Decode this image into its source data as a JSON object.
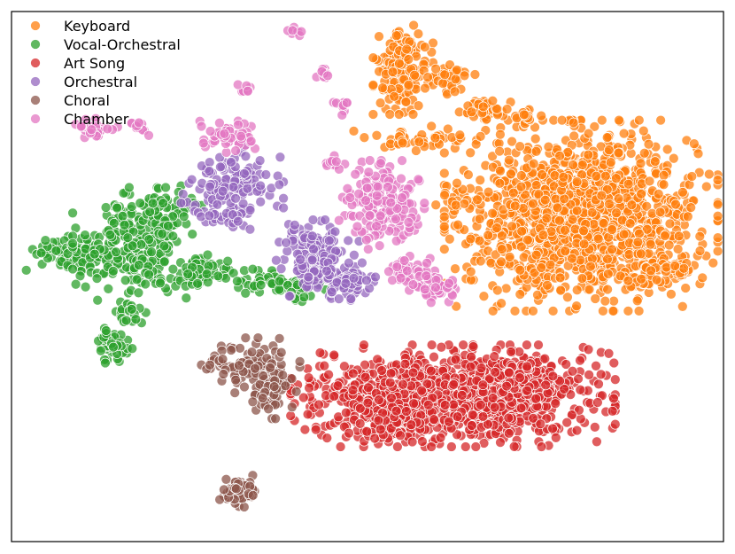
{
  "chart_data": {
    "type": "scatter",
    "title": "",
    "xlabel": "",
    "ylabel": "",
    "xlim": [
      -100,
      100
    ],
    "ylim": [
      -100,
      100
    ],
    "grid": false,
    "ticks": false,
    "legend": "top-left",
    "point_alpha": 0.75,
    "series": [
      {
        "name": "Keyboard",
        "color": "#ff7f0e",
        "clusters": [
          {
            "center": [
              60,
              23
            ],
            "spread": [
              16,
              15
            ],
            "count": 1400
          },
          {
            "center": [
              10,
              78
            ],
            "spread": [
              3.5,
              7
            ],
            "count": 170
          },
          {
            "center": [
              23,
              75
            ],
            "spread": [
              3,
              3
            ],
            "count": 35
          },
          {
            "center": [
              33,
              63
            ],
            "spread": [
              3,
              2
            ],
            "count": 40
          },
          {
            "center": [
              44,
              60
            ],
            "spread": [
              2,
              2
            ],
            "count": 20
          },
          {
            "center": [
              13,
              52
            ],
            "spread": [
              8,
              2
            ],
            "count": 45
          },
          {
            "center": [
              85,
              3
            ],
            "spread": [
              4,
              2
            ],
            "count": 40
          },
          {
            "center": [
              76,
              -2
            ],
            "spread": [
              3,
              2
            ],
            "count": 20
          },
          {
            "center": [
              24,
              30
            ],
            "spread": [
              2,
              3
            ],
            "count": 12
          }
        ]
      },
      {
        "name": "Vocal-Orchestral",
        "color": "#2ca02c",
        "clusters": [
          {
            "center": [
              -80,
              8
            ],
            "spread": [
              8,
              3.5
            ],
            "count": 110
          },
          {
            "center": [
              -66,
              12
            ],
            "spread": [
              7,
              9
            ],
            "count": 220
          },
          {
            "center": [
              -56,
              26
            ],
            "spread": [
              4,
              4
            ],
            "count": 50
          },
          {
            "center": [
              -48,
              1
            ],
            "spread": [
              6,
              3
            ],
            "count": 70
          },
          {
            "center": [
              -71,
              -26
            ],
            "spread": [
              3,
              3
            ],
            "count": 45
          },
          {
            "center": [
              -66,
              -14
            ],
            "spread": [
              2,
              3
            ],
            "count": 20
          },
          {
            "center": [
              -27,
              -2
            ],
            "spread": [
              4,
              2
            ],
            "count": 45
          },
          {
            "center": [
              -18,
              -5
            ],
            "spread": [
              3,
              2
            ],
            "count": 20
          },
          {
            "center": [
              -58,
              15
            ],
            "spread": [
              2,
              2
            ],
            "count": 10
          }
        ]
      },
      {
        "name": "Art Song",
        "color": "#d62728",
        "clusters": [
          {
            "center": [
              24,
              -45
            ],
            "spread": [
              19,
              8
            ],
            "count": 1100
          },
          {
            "center": [
              5,
              -52
            ],
            "spread": [
              6,
              5
            ],
            "count": 100
          },
          {
            "center": [
              44,
              -38
            ],
            "spread": [
              5,
              4
            ],
            "count": 80
          }
        ]
      },
      {
        "name": "Orchestral",
        "color": "#9467bd",
        "clusters": [
          {
            "center": [
              -38,
              35
            ],
            "spread": [
              6,
              6
            ],
            "count": 130
          },
          {
            "center": [
              -14,
              7
            ],
            "spread": [
              5,
              6
            ],
            "count": 160
          },
          {
            "center": [
              -6,
              -2
            ],
            "spread": [
              4,
              3
            ],
            "count": 60
          },
          {
            "center": [
              -40,
              22
            ],
            "spread": [
              3,
              2
            ],
            "count": 20
          }
        ]
      },
      {
        "name": "Choral",
        "color": "#8c564b",
        "clusters": [
          {
            "center": [
              -31,
              -34
            ],
            "spread": [
              5,
              5
            ],
            "count": 90
          },
          {
            "center": [
              -27,
              -44
            ],
            "spread": [
              3,
              4
            ],
            "count": 40
          },
          {
            "center": [
              -36,
              -81
            ],
            "spread": [
              2.5,
              2.5
            ],
            "count": 60
          },
          {
            "center": [
              -43,
              -32
            ],
            "spread": [
              2,
              2
            ],
            "count": 15
          }
        ]
      },
      {
        "name": "Chamber",
        "color": "#e377c2",
        "clusters": [
          {
            "center": [
              4,
              27
            ],
            "spread": [
              5,
              7
            ],
            "count": 170
          },
          {
            "center": [
              -40,
              54
            ],
            "spread": [
              4,
              3
            ],
            "count": 50
          },
          {
            "center": [
              -76,
              56
            ],
            "spread": [
              2.5,
              1.5
            ],
            "count": 25
          },
          {
            "center": [
              -64,
              56
            ],
            "spread": [
              1.5,
              1.5
            ],
            "count": 15
          },
          {
            "center": [
              -12,
              77
            ],
            "spread": [
              1,
              1
            ],
            "count": 12
          },
          {
            "center": [
              -34,
              70
            ],
            "spread": [
              1,
              1
            ],
            "count": 8
          },
          {
            "center": [
              12,
              2
            ],
            "spread": [
              3,
              3
            ],
            "count": 50
          },
          {
            "center": [
              20,
              -5
            ],
            "spread": [
              3,
              3
            ],
            "count": 40
          },
          {
            "center": [
              -10,
              42
            ],
            "spread": [
              1.5,
              1.5
            ],
            "count": 10
          },
          {
            "center": [
              -20,
              93
            ],
            "spread": [
              1,
              1
            ],
            "count": 8
          },
          {
            "center": [
              -7,
              63
            ],
            "spread": [
              2,
              2
            ],
            "count": 10
          }
        ]
      }
    ]
  }
}
